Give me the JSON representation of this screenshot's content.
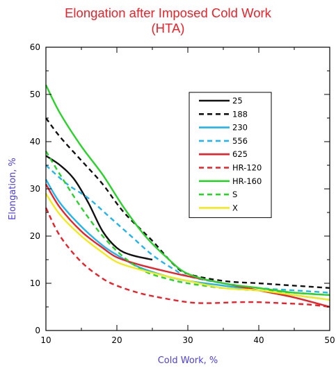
{
  "chart_data": {
    "type": "line",
    "title_line1": "Elongation after Imposed Cold Work",
    "title_line2": "(HTA)",
    "xlabel": "Cold Work, %",
    "ylabel": "Elongation, %",
    "xlim": [
      10,
      50
    ],
    "ylim": [
      0,
      60
    ],
    "x_ticks": [
      10,
      20,
      30,
      40,
      50
    ],
    "y_ticks": [
      0,
      10,
      20,
      30,
      40,
      50,
      60
    ],
    "legend_position": "top-right",
    "series": [
      {
        "name": "25",
        "color": "#111111",
        "dash": "solid",
        "points": [
          [
            10,
            37
          ],
          [
            12,
            35
          ],
          [
            14,
            32
          ],
          [
            16,
            27
          ],
          [
            18,
            21
          ],
          [
            20,
            17.5
          ],
          [
            22,
            16
          ],
          [
            25,
            15
          ]
        ]
      },
      {
        "name": "188",
        "color": "#111111",
        "dash": "dashed",
        "points": [
          [
            10,
            45
          ],
          [
            12,
            41
          ],
          [
            15,
            36
          ],
          [
            18,
            31
          ],
          [
            21,
            25
          ],
          [
            25,
            19
          ],
          [
            28,
            14
          ],
          [
            30,
            12
          ],
          [
            35,
            10.5
          ],
          [
            40,
            10
          ],
          [
            45,
            9.5
          ],
          [
            50,
            9
          ]
        ]
      },
      {
        "name": "230",
        "color": "#22b5ec",
        "dash": "solid",
        "points": [
          [
            10,
            32
          ],
          [
            12,
            27
          ],
          [
            15,
            22
          ],
          [
            18,
            18
          ],
          [
            20,
            16
          ],
          [
            23,
            13.5
          ],
          [
            27,
            11.5
          ],
          [
            30,
            10.5
          ],
          [
            35,
            9.5
          ],
          [
            40,
            8.5
          ],
          [
            45,
            7.5
          ],
          [
            50,
            6.5
          ]
        ]
      },
      {
        "name": "556",
        "color": "#22b5ec",
        "dash": "dashed",
        "points": [
          [
            10,
            35
          ],
          [
            13,
            31
          ],
          [
            16,
            28
          ],
          [
            19,
            24
          ],
          [
            22,
            20
          ],
          [
            25,
            16
          ],
          [
            28,
            13
          ],
          [
            30,
            11.5
          ],
          [
            35,
            10
          ],
          [
            40,
            9
          ],
          [
            45,
            8.5
          ],
          [
            50,
            8
          ]
        ]
      },
      {
        "name": "625",
        "color": "#e8222a",
        "dash": "solid",
        "points": [
          [
            10,
            31
          ],
          [
            12,
            26
          ],
          [
            15,
            21
          ],
          [
            18,
            17.5
          ],
          [
            20,
            15.5
          ],
          [
            23,
            14
          ],
          [
            27,
            12.5
          ],
          [
            30,
            11.5
          ],
          [
            35,
            10
          ],
          [
            40,
            8.5
          ],
          [
            45,
            7
          ],
          [
            50,
            5
          ]
        ]
      },
      {
        "name": "HR-120",
        "color": "#e8222a",
        "dash": "dashed",
        "points": [
          [
            10,
            26
          ],
          [
            12,
            20
          ],
          [
            15,
            14.5
          ],
          [
            18,
            11
          ],
          [
            20,
            9.5
          ],
          [
            23,
            8
          ],
          [
            26,
            7
          ],
          [
            30,
            6
          ],
          [
            33,
            5.8
          ],
          [
            37,
            6
          ],
          [
            40,
            6
          ],
          [
            43,
            5.8
          ],
          [
            47,
            5.5
          ],
          [
            50,
            5
          ]
        ]
      },
      {
        "name": "HR-160",
        "color": "#2bd12b",
        "dash": "solid",
        "points": [
          [
            10,
            52
          ],
          [
            12,
            46
          ],
          [
            15,
            39
          ],
          [
            18,
            33
          ],
          [
            21,
            26
          ],
          [
            24,
            20
          ],
          [
            27,
            15.5
          ],
          [
            30,
            12
          ],
          [
            35,
            10
          ],
          [
            40,
            9
          ],
          [
            45,
            8
          ],
          [
            50,
            7.5
          ]
        ]
      },
      {
        "name": "S",
        "color": "#2bd12b",
        "dash": "dashed",
        "points": [
          [
            10,
            38
          ],
          [
            12,
            33
          ],
          [
            15,
            26
          ],
          [
            18,
            20
          ],
          [
            21,
            15.5
          ],
          [
            24,
            12.5
          ],
          [
            27,
            11
          ],
          [
            30,
            10
          ],
          [
            35,
            9
          ],
          [
            40,
            8.5
          ],
          [
            45,
            8
          ],
          [
            50,
            7.5
          ]
        ]
      },
      {
        "name": "X",
        "color": "#f2ea1d",
        "dash": "solid",
        "points": [
          [
            10,
            29
          ],
          [
            12,
            24.5
          ],
          [
            15,
            20
          ],
          [
            18,
            16.5
          ],
          [
            20,
            14.5
          ],
          [
            23,
            13
          ],
          [
            27,
            11.5
          ],
          [
            30,
            10.5
          ],
          [
            35,
            9
          ],
          [
            40,
            8.5
          ],
          [
            45,
            7.5
          ],
          [
            50,
            6.5
          ]
        ]
      }
    ]
  }
}
